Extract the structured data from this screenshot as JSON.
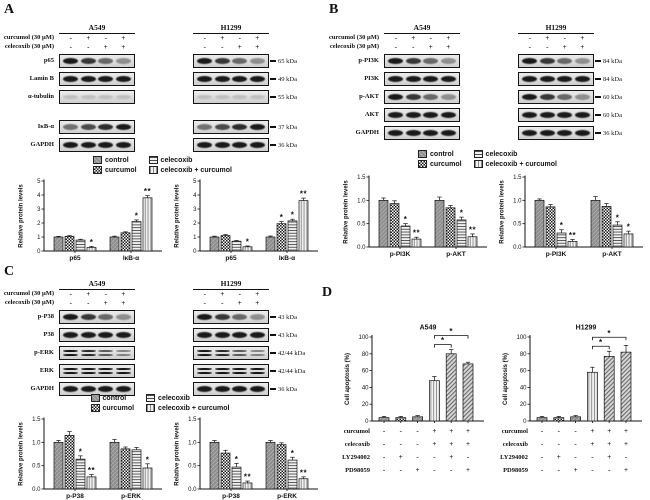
{
  "figure": {
    "background": "#ffffff",
    "ink": "#111111",
    "gray_fill": "#8f8f8f"
  },
  "panels": {
    "A": {
      "label": "A",
      "cell_lines": [
        "A549",
        "H1299"
      ],
      "treatment_rows": [
        {
          "label": "curcumol (30 μM)",
          "signs": [
            "-",
            "+",
            "-",
            "+"
          ]
        },
        {
          "label": "celecoxib (30 μM)",
          "signs": [
            "-",
            "-",
            "+",
            "+"
          ]
        }
      ],
      "blots": [
        {
          "label": "p65",
          "kda": "65 kDa",
          "style": "fade"
        },
        {
          "label": "Lamin B",
          "kda": "49 kDa",
          "style": "single"
        },
        {
          "label": "α-tubulin",
          "kda": "55 kDa",
          "style": "faint"
        },
        {
          "label": "IκB-α",
          "kda": "37 kDa",
          "style": "rise",
          "gap_before": true
        },
        {
          "label": "GAPDH",
          "kda": "36 kDa",
          "style": "single"
        }
      ]
    },
    "B": {
      "label": "B",
      "cell_lines": [
        "A549",
        "H1299"
      ],
      "treatment_rows": [
        {
          "label": "curcumol (30 μM)",
          "signs": [
            "-",
            "+",
            "-",
            "+"
          ]
        },
        {
          "label": "celecoxib (30 μM)",
          "signs": [
            "-",
            "-",
            "+",
            "+"
          ]
        }
      ],
      "blots": [
        {
          "label": "p-PI3K",
          "kda": "84 kDa",
          "style": "fade"
        },
        {
          "label": "PI3K",
          "kda": "84 kDa",
          "style": "single"
        },
        {
          "label": "p-AKT",
          "kda": "60 kDa",
          "style": "fade"
        },
        {
          "label": "AKT",
          "kda": "60 kDa",
          "style": "single"
        },
        {
          "label": "GAPDH",
          "kda": "36 kDa",
          "style": "single"
        }
      ]
    },
    "C": {
      "label": "C",
      "cell_lines": [
        "A549",
        "H1299"
      ],
      "treatment_rows": [
        {
          "label": "curcumol (30 μM)",
          "signs": [
            "-",
            "+",
            "-",
            "+"
          ]
        },
        {
          "label": "celecoxib (30 μM)",
          "signs": [
            "-",
            "-",
            "+",
            "+"
          ]
        }
      ],
      "blots": [
        {
          "label": "p-P38",
          "kda": "43 kDa",
          "style": "fade"
        },
        {
          "label": "P38",
          "kda": "43 kDa",
          "style": "single"
        },
        {
          "label": "p-ERK",
          "kda": "42/44 kDa",
          "style": "double-fade"
        },
        {
          "label": "ERK",
          "kda": "42/44 kDa",
          "style": "double"
        },
        {
          "label": "GAPDH",
          "kda": "36 kDa",
          "style": "single"
        }
      ]
    },
    "D": {
      "label": "D"
    }
  },
  "legend": {
    "items": [
      {
        "label": "control",
        "pattern": "gray"
      },
      {
        "label": "celecoxib",
        "pattern": "hlines"
      },
      {
        "label": "curcumol",
        "pattern": "checker"
      },
      {
        "label": "celecoxib + curcumol",
        "pattern": "vlines"
      }
    ]
  },
  "chart_data": [
    {
      "panel": "A",
      "cell_line": "A549",
      "type": "bar",
      "ylabel": "Relative protein levels",
      "ylim": [
        0,
        5
      ],
      "yticks": [
        "0",
        "1",
        "2",
        "3",
        "4",
        "5"
      ],
      "categories": [
        "p65",
        "IκB-α"
      ],
      "series": [
        {
          "name": "control",
          "pattern": "gray",
          "values": [
            1.0,
            1.0
          ],
          "errors": [
            0.05,
            0.06
          ],
          "sig": [
            "",
            ""
          ]
        },
        {
          "name": "curcumol",
          "pattern": "checker",
          "values": [
            1.05,
            1.3
          ],
          "errors": [
            0.05,
            0.07
          ],
          "sig": [
            "",
            ""
          ]
        },
        {
          "name": "celecoxib",
          "pattern": "hlines",
          "values": [
            0.78,
            2.1
          ],
          "errors": [
            0.06,
            0.12
          ],
          "sig": [
            "",
            "*"
          ]
        },
        {
          "name": "celecoxib + curcumol",
          "pattern": "vlines",
          "values": [
            0.25,
            3.8
          ],
          "errors": [
            0.08,
            0.15
          ],
          "sig": [
            "*",
            "**"
          ]
        }
      ]
    },
    {
      "panel": "A",
      "cell_line": "H1299",
      "type": "bar",
      "ylabel": "Relative protein levels",
      "ylim": [
        0,
        5
      ],
      "yticks": [
        "0",
        "1",
        "2",
        "3",
        "4",
        "5"
      ],
      "categories": [
        "p65",
        "IκB-α"
      ],
      "series": [
        {
          "name": "control",
          "pattern": "gray",
          "values": [
            1.0,
            1.0
          ],
          "errors": [
            0.06,
            0.07
          ],
          "sig": [
            "",
            ""
          ]
        },
        {
          "name": "curcumol",
          "pattern": "checker",
          "values": [
            1.1,
            1.95
          ],
          "errors": [
            0.08,
            0.15
          ],
          "sig": [
            "",
            "*"
          ]
        },
        {
          "name": "celecoxib",
          "pattern": "hlines",
          "values": [
            0.7,
            2.15
          ],
          "errors": [
            0.05,
            0.12
          ],
          "sig": [
            "",
            "*"
          ]
        },
        {
          "name": "celecoxib + curcumol",
          "pattern": "vlines",
          "values": [
            0.3,
            3.6
          ],
          "errors": [
            0.06,
            0.18
          ],
          "sig": [
            "*",
            "**"
          ]
        }
      ]
    },
    {
      "panel": "B",
      "cell_line": "A549",
      "type": "bar",
      "ylabel": "Relative protein levels",
      "ylim": [
        0,
        1.5
      ],
      "yticks": [
        "0.0",
        "0.5",
        "1.0",
        "1.5"
      ],
      "categories": [
        "p-PI3K",
        "p-AKT"
      ],
      "series": [
        {
          "name": "control",
          "pattern": "gray",
          "values": [
            1.0,
            1.0
          ],
          "errors": [
            0.05,
            0.07
          ],
          "sig": [
            "",
            ""
          ]
        },
        {
          "name": "curcumol",
          "pattern": "checker",
          "values": [
            0.93,
            0.84
          ],
          "errors": [
            0.06,
            0.05
          ],
          "sig": [
            "",
            ""
          ]
        },
        {
          "name": "celecoxib",
          "pattern": "hlines",
          "values": [
            0.45,
            0.58
          ],
          "errors": [
            0.05,
            0.06
          ],
          "sig": [
            "*",
            "*"
          ]
        },
        {
          "name": "celecoxib + curcumol",
          "pattern": "vlines",
          "values": [
            0.17,
            0.22
          ],
          "errors": [
            0.04,
            0.06
          ],
          "sig": [
            "**",
            "**"
          ]
        }
      ]
    },
    {
      "panel": "B",
      "cell_line": "H1299",
      "type": "bar",
      "ylabel": "Relative protein levels",
      "ylim": [
        0,
        1.5
      ],
      "yticks": [
        "0.0",
        "0.5",
        "1.0",
        "1.5"
      ],
      "categories": [
        "p-PI3K",
        "p-AKT"
      ],
      "series": [
        {
          "name": "control",
          "pattern": "gray",
          "values": [
            1.0,
            1.0
          ],
          "errors": [
            0.03,
            0.08
          ],
          "sig": [
            "",
            ""
          ]
        },
        {
          "name": "curcumol",
          "pattern": "checker",
          "values": [
            0.86,
            0.87
          ],
          "errors": [
            0.05,
            0.06
          ],
          "sig": [
            "",
            ""
          ]
        },
        {
          "name": "celecoxib",
          "pattern": "hlines",
          "values": [
            0.3,
            0.47
          ],
          "errors": [
            0.07,
            0.07
          ],
          "sig": [
            "*",
            "*"
          ]
        },
        {
          "name": "celecoxib + curcumol",
          "pattern": "vlines",
          "values": [
            0.12,
            0.28
          ],
          "errors": [
            0.04,
            0.06
          ],
          "sig": [
            "**",
            "*"
          ]
        }
      ]
    },
    {
      "panel": "C",
      "cell_line": "A549",
      "type": "bar",
      "ylabel": "Relative protein levels",
      "ylim": [
        0,
        1.5
      ],
      "yticks": [
        "0.0",
        "0.5",
        "1.0",
        "1.5"
      ],
      "categories": [
        "p-P38",
        "p-ERK"
      ],
      "series": [
        {
          "name": "control",
          "pattern": "gray",
          "values": [
            1.0,
            1.0
          ],
          "errors": [
            0.04,
            0.06
          ],
          "sig": [
            "",
            ""
          ]
        },
        {
          "name": "curcumol",
          "pattern": "checker",
          "values": [
            1.15,
            0.86
          ],
          "errors": [
            0.08,
            0.04
          ],
          "sig": [
            "",
            ""
          ]
        },
        {
          "name": "celecoxib",
          "pattern": "hlines",
          "values": [
            0.64,
            0.84
          ],
          "errors": [
            0.07,
            0.05
          ],
          "sig": [
            "*",
            ""
          ]
        },
        {
          "name": "celecoxib + curcumol",
          "pattern": "vlines",
          "values": [
            0.26,
            0.45
          ],
          "errors": [
            0.05,
            0.09
          ],
          "sig": [
            "**",
            "*"
          ]
        }
      ]
    },
    {
      "panel": "C",
      "cell_line": "H1299",
      "type": "bar",
      "ylabel": "Relative protein levels",
      "ylim": [
        0,
        1.5
      ],
      "yticks": [
        "0.0",
        "0.5",
        "1.0",
        "1.5"
      ],
      "categories": [
        "p-P38",
        "p-ERK"
      ],
      "series": [
        {
          "name": "control",
          "pattern": "gray",
          "values": [
            1.0,
            1.0
          ],
          "errors": [
            0.04,
            0.04
          ],
          "sig": [
            "",
            ""
          ]
        },
        {
          "name": "curcumol",
          "pattern": "checker",
          "values": [
            0.77,
            0.95
          ],
          "errors": [
            0.06,
            0.04
          ],
          "sig": [
            "",
            ""
          ]
        },
        {
          "name": "celecoxib",
          "pattern": "hlines",
          "values": [
            0.47,
            0.62
          ],
          "errors": [
            0.08,
            0.06
          ],
          "sig": [
            "*",
            "*"
          ]
        },
        {
          "name": "celecoxib + curcumol",
          "pattern": "vlines",
          "values": [
            0.13,
            0.22
          ],
          "errors": [
            0.04,
            0.04
          ],
          "sig": [
            "**",
            "**"
          ]
        }
      ]
    },
    {
      "panel": "D",
      "cell_line": "A549",
      "type": "bar",
      "title": "A549",
      "ylabel": "Cell apoptosis (%)",
      "ylim": [
        0,
        100
      ],
      "yticks": [
        "0",
        "20",
        "40",
        "60",
        "80",
        "100"
      ],
      "values": [
        4,
        4,
        5,
        48,
        80,
        68
      ],
      "errors": [
        1.5,
        1.5,
        1.5,
        5,
        5,
        2
      ],
      "bar_patterns": [
        "gray",
        "checker",
        "gray",
        "vlines",
        "diag",
        "diag"
      ],
      "sig_brackets": [
        {
          "from": 4,
          "to": 5,
          "label": "*"
        },
        {
          "from": 4,
          "to": 6,
          "label": "*"
        }
      ],
      "treatment_rows": [
        {
          "label": "curcumol",
          "signs": [
            "-",
            "-",
            "-",
            "+",
            "+",
            "+"
          ]
        },
        {
          "label": "celecoxib",
          "signs": [
            "-",
            "-",
            "-",
            "+",
            "+",
            "+"
          ]
        },
        {
          "label": "LY294002",
          "signs": [
            "-",
            "+",
            "-",
            "-",
            "+",
            "-"
          ]
        },
        {
          "label": "PD98059",
          "signs": [
            "-",
            "-",
            "+",
            "-",
            "-",
            "+"
          ]
        }
      ]
    },
    {
      "panel": "D",
      "cell_line": "H1299",
      "type": "bar",
      "title": "H1299",
      "ylabel": "Cell apoptosis (%)",
      "ylim": [
        0,
        100
      ],
      "yticks": [
        "0",
        "20",
        "40",
        "60",
        "80",
        "100"
      ],
      "values": [
        4,
        4,
        5,
        58,
        77,
        82
      ],
      "errors": [
        1.5,
        1.5,
        1.5,
        6,
        6,
        8
      ],
      "bar_patterns": [
        "gray",
        "checker",
        "gray",
        "vlines",
        "diag",
        "diag"
      ],
      "sig_brackets": [
        {
          "from": 4,
          "to": 5,
          "label": "*"
        },
        {
          "from": 4,
          "to": 6,
          "label": "*"
        }
      ],
      "treatment_rows": [
        {
          "label": "curcumol",
          "signs": [
            "-",
            "-",
            "-",
            "+",
            "+",
            "+"
          ]
        },
        {
          "label": "celecoxib",
          "signs": [
            "-",
            "-",
            "-",
            "+",
            "+",
            "+"
          ]
        },
        {
          "label": "LY294002",
          "signs": [
            "-",
            "+",
            "-",
            "-",
            "+",
            "-"
          ]
        },
        {
          "label": "PD98059",
          "signs": [
            "-",
            "-",
            "+",
            "-",
            "-",
            "+"
          ]
        }
      ]
    }
  ]
}
